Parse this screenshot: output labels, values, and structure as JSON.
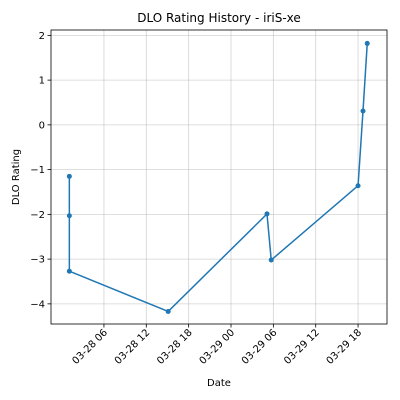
{
  "chart_data": {
    "type": "line",
    "title": "DLO Rating History - iriS-xe",
    "xlabel": "Date",
    "ylabel": "DLO Rating",
    "x_unit": "hours since 03-28 00:00",
    "xlim": [
      -1.5,
      46.1
    ],
    "ylim": [
      -4.45,
      2.12
    ],
    "grid": true,
    "color": "#1f77b4",
    "x_ticks": [
      {
        "value": 6,
        "label": "03-28 06"
      },
      {
        "value": 12,
        "label": "03-28 12"
      },
      {
        "value": 18,
        "label": "03-28 18"
      },
      {
        "value": 24,
        "label": "03-29 00"
      },
      {
        "value": 30,
        "label": "03-29 06"
      },
      {
        "value": 36,
        "label": "03-29 12"
      },
      {
        "value": 42,
        "label": "03-29 18"
      }
    ],
    "y_ticks": [
      {
        "value": -4,
        "label": "−4"
      },
      {
        "value": -3,
        "label": "−3"
      },
      {
        "value": -2,
        "label": "−2"
      },
      {
        "value": -1,
        "label": "−1"
      },
      {
        "value": 0,
        "label": "0"
      },
      {
        "value": 1,
        "label": "1"
      },
      {
        "value": 2,
        "label": "2"
      }
    ],
    "series": [
      {
        "name": "iriS-xe",
        "points": [
          {
            "x": 1.1,
            "y": -1.15
          },
          {
            "x": 1.1,
            "y": -2.03
          },
          {
            "x": 1.1,
            "y": -3.27
          },
          {
            "x": 15.1,
            "y": -4.17
          },
          {
            "x": 29.1,
            "y": -1.99
          },
          {
            "x": 29.7,
            "y": -3.02
          },
          {
            "x": 42.0,
            "y": -1.36
          },
          {
            "x": 42.7,
            "y": 0.31
          },
          {
            "x": 43.3,
            "y": 1.82
          }
        ]
      }
    ]
  }
}
